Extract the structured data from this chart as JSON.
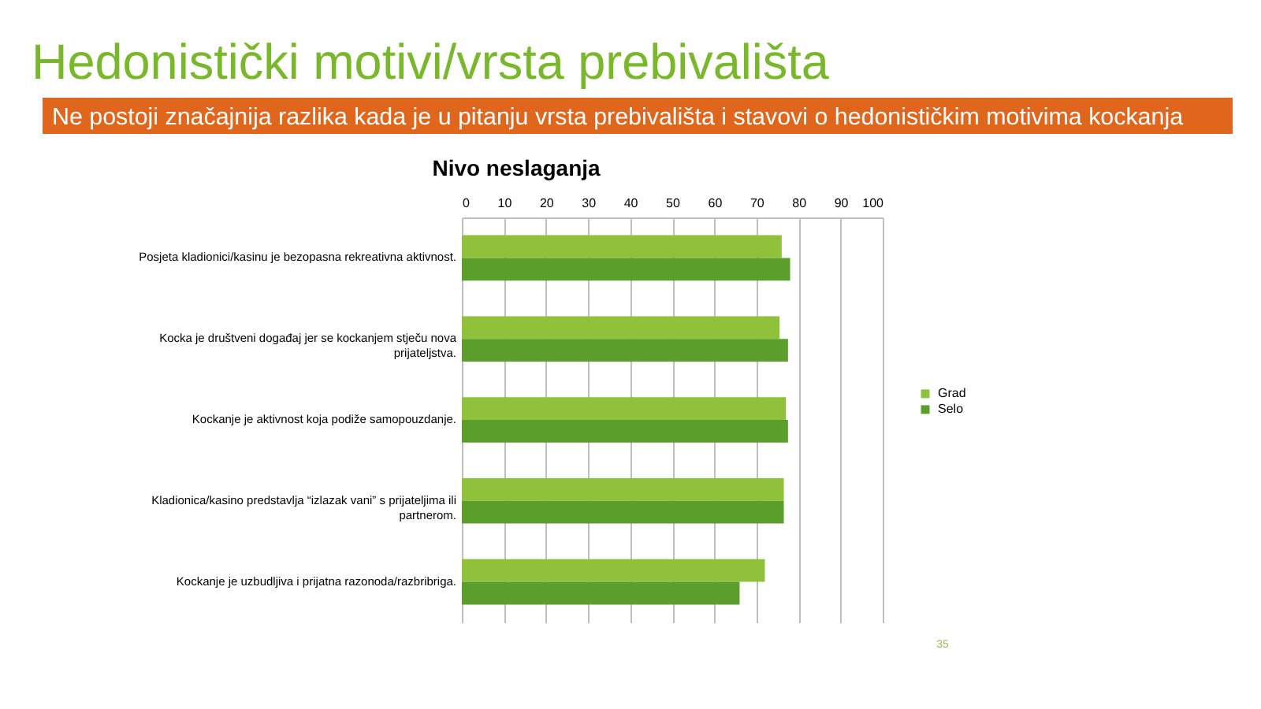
{
  "chart_data": {
    "type": "bar",
    "orientation": "horizontal",
    "title": "Hedonistički motivi/vrsta prebivališta",
    "subtitle": "Ne postoji značajnija razlika kada je u pitanju vrsta prebivališta i stavovi o hedonističkim motivima kockanja",
    "xlabel": "Nivo neslaganja",
    "categories": [
      "Posjeta kladionici/kasinu je bezopasna rekreativna aktivnost.",
      "Kocka je društveni događaj jer se kockanjem stječu nova prijateljstva.",
      "Kockanje je aktivnost koja podiže samopouzdanje.",
      "Kladionica/kasino predstavlja “izlazak vani” s prijateljima ili partnerom.",
      "Kockanje je uzbudljiva i prijatna razonoda/razbribriga."
    ],
    "series": [
      {
        "name": "Grad",
        "color": "#8fc13b",
        "values": [
          76,
          75.5,
          77,
          76.5,
          72
        ]
      },
      {
        "name": "Selo",
        "color": "#5c9e2c",
        "values": [
          78,
          77.5,
          77.5,
          76.5,
          66
        ]
      }
    ],
    "xlim": [
      0,
      100
    ],
    "xticks": [
      0,
      10,
      20,
      30,
      40,
      50,
      60,
      70,
      80,
      90,
      100
    ],
    "grid": "x",
    "legend": "right",
    "annotations": [
      "35"
    ]
  }
}
